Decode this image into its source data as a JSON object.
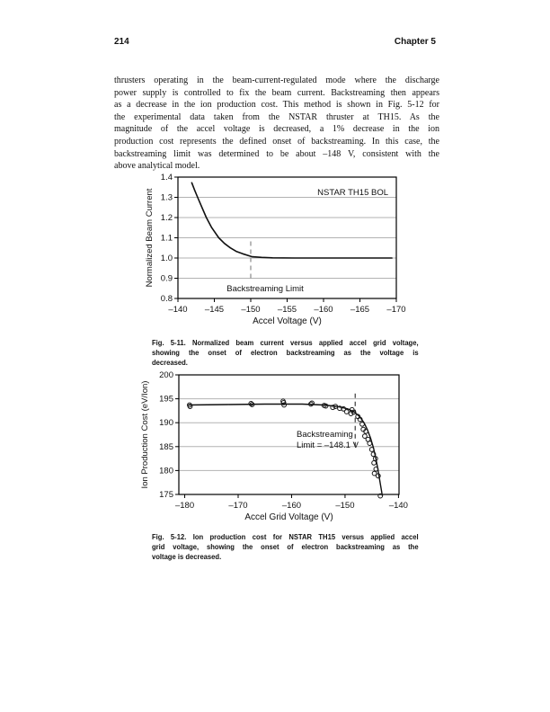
{
  "page": {
    "number": "214",
    "chapter": "Chapter 5"
  },
  "paragraph": {
    "lines": [
      "thrusters operating in the beam-current-regulated mode where the discharge",
      "power supply is controlled to fix the beam current. Backstreaming then appears",
      "as a decrease in the ion production cost. This method is shown in Fig. 5-12 for",
      "the experimental data taken from the NSTAR thruster at TH15. As the",
      "magnitude of the accel voltage is decreased, a 1% decrease in the ion",
      "production cost represents the defined onset of backstreaming. In this case, the",
      "backstreaming limit was determined to be about –148 V, consistent with the",
      "above analytical model."
    ]
  },
  "figures": [
    {
      "caption_lines": [
        "Fig. 5-11. Normalized beam current versus applied accel grid voltage,",
        "showing the onset of electron backstreaming as the voltage is",
        "decreased."
      ]
    },
    {
      "caption_lines": [
        "Fig. 5-12. Ion production cost for NSTAR TH15 versus applied accel",
        "grid voltage, showing the onset of electron backstreaming as the",
        "voltage is decreased."
      ]
    }
  ],
  "chart_data": [
    {
      "type": "line",
      "title": "",
      "corner_label": "NSTAR TH15 BOL",
      "xlabel": "Accel Voltage (V)",
      "ylabel": "Normalized Beam Current",
      "xlim": [
        -140,
        -170
      ],
      "ylim": [
        0.8,
        1.4
      ],
      "xticks": [
        -140,
        -145,
        -150,
        -155,
        -160,
        -165,
        -170
      ],
      "yticks": [
        0.8,
        0.9,
        1.0,
        1.1,
        1.2,
        1.3,
        1.4
      ],
      "grid": "horizontal",
      "backstreaming_line": {
        "x": -150,
        "y_from": 0.9,
        "y_to": 1.085,
        "label": "Backstreaming Limit"
      },
      "series": [
        {
          "name": "normalized beam current",
          "points": [
            [
              -141.9,
              1.372
            ],
            [
              -142.3,
              1.335
            ],
            [
              -142.7,
              1.3
            ],
            [
              -143.3,
              1.25
            ],
            [
              -143.9,
              1.2
            ],
            [
              -144.6,
              1.152
            ],
            [
              -145.6,
              1.1
            ],
            [
              -146.4,
              1.072
            ],
            [
              -147.2,
              1.05
            ],
            [
              -148.0,
              1.033
            ],
            [
              -148.9,
              1.021
            ],
            [
              -150.2,
              1.006
            ],
            [
              -151.5,
              1.003
            ],
            [
              -153.0,
              1.001
            ],
            [
              -156.0,
              1.0
            ],
            [
              -160.0,
              1.0
            ],
            [
              -165.0,
              1.0
            ],
            [
              -169.4,
              1.0
            ]
          ]
        }
      ]
    },
    {
      "type": "scatter",
      "title": "",
      "xlabel": "Accel Grid Voltage (V)",
      "ylabel": "Ion Production Cost (eV/Ion)",
      "xlim": [
        -181.1,
        -139.9
      ],
      "ylim": [
        175,
        200
      ],
      "xticks": [
        -180,
        -170,
        -160,
        -150,
        -140
      ],
      "yticks": [
        175,
        180,
        185,
        190,
        195,
        200
      ],
      "grid": "horizontal",
      "backstreaming_line": {
        "x": -148.1,
        "y_from": 185,
        "y_to": 196.3,
        "label_lines": [
          "Backstreaming",
          "Limit = –148.1 V"
        ]
      },
      "scatter": {
        "name": "measured ion production cost",
        "points": [
          [
            -179.1,
            193.7
          ],
          [
            -179.0,
            193.4
          ],
          [
            -167.6,
            194.0
          ],
          [
            -167.4,
            193.8
          ],
          [
            -161.6,
            194.5
          ],
          [
            -161.5,
            194.2
          ],
          [
            -161.4,
            193.7
          ],
          [
            -156.4,
            193.9
          ],
          [
            -156.2,
            194.1
          ],
          [
            -153.9,
            193.6
          ],
          [
            -153.6,
            193.5
          ],
          [
            -152.3,
            193.2
          ],
          [
            -151.8,
            193.4
          ],
          [
            -151.0,
            193.0
          ],
          [
            -150.3,
            192.9
          ],
          [
            -149.7,
            192.3
          ],
          [
            -148.9,
            191.9
          ],
          [
            -148.7,
            192.7
          ],
          [
            -148.4,
            192.2
          ],
          [
            -147.6,
            191.3
          ],
          [
            -147.2,
            190.7
          ],
          [
            -146.8,
            189.7
          ],
          [
            -146.6,
            188.6
          ],
          [
            -146.3,
            187.2
          ],
          [
            -146.1,
            188.2
          ],
          [
            -145.7,
            186.5
          ],
          [
            -145.4,
            185.7
          ],
          [
            -145.0,
            184.4
          ],
          [
            -144.7,
            183.4
          ],
          [
            -144.6,
            181.6
          ],
          [
            -144.3,
            182.5
          ],
          [
            -144.5,
            179.4
          ],
          [
            -144.2,
            180.3
          ],
          [
            -143.8,
            178.9
          ],
          [
            -143.4,
            174.7
          ]
        ]
      },
      "fit": {
        "name": "fit curve",
        "points": [
          [
            -179.5,
            193.7
          ],
          [
            -172.0,
            193.8
          ],
          [
            -165.0,
            193.9
          ],
          [
            -158.0,
            193.9
          ],
          [
            -154.0,
            193.7
          ],
          [
            -151.5,
            193.4
          ],
          [
            -149.5,
            192.9
          ],
          [
            -148.2,
            192.2
          ],
          [
            -147.2,
            191.2
          ],
          [
            -146.4,
            189.9
          ],
          [
            -145.8,
            188.5
          ],
          [
            -145.2,
            186.7
          ],
          [
            -144.7,
            184.8
          ],
          [
            -144.3,
            182.9
          ],
          [
            -143.9,
            180.6
          ],
          [
            -143.5,
            177.9
          ],
          [
            -143.1,
            175.2
          ],
          [
            -143.0,
            174.7
          ]
        ]
      }
    }
  ]
}
